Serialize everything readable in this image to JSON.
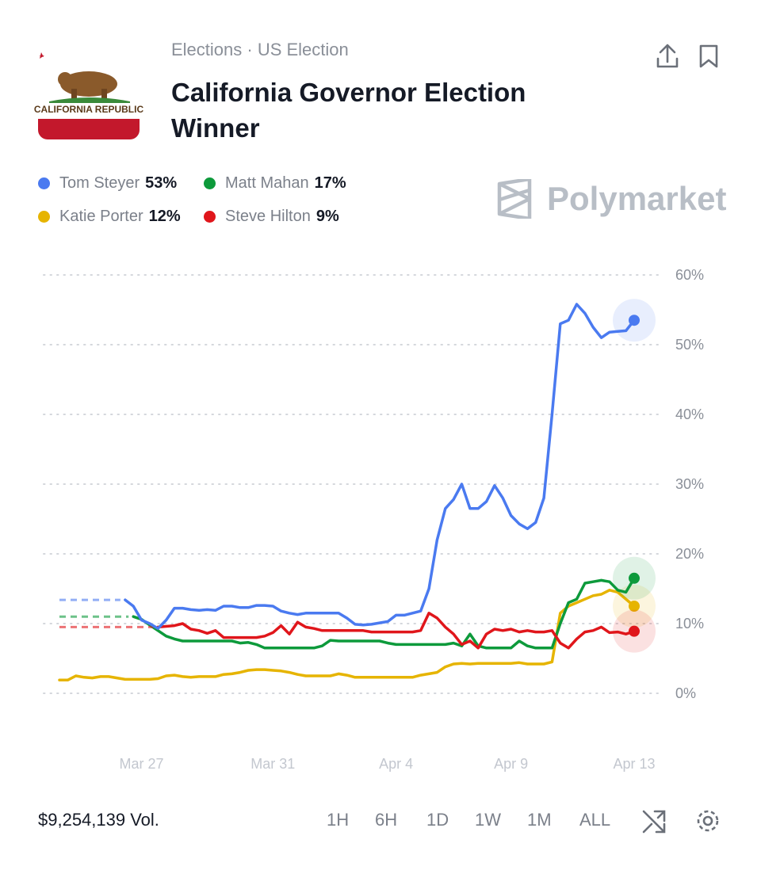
{
  "header": {
    "breadcrumb": "Elections · US Election",
    "title": "California Governor Election Winner",
    "flag_text": "CALIFORNIA REPUBLIC",
    "brand": "Polymarket"
  },
  "chart_data": {
    "type": "line",
    "categories": [
      null,
      null,
      null,
      null,
      null,
      null,
      null,
      null,
      null,
      null,
      "Mar 27",
      null,
      null,
      null,
      null,
      null,
      null,
      null,
      null,
      null,
      null,
      null,
      null,
      null,
      null,
      null,
      "Mar 31",
      null,
      null,
      null,
      null,
      null,
      null,
      null,
      null,
      null,
      null,
      null,
      null,
      null,
      null,
      "Apr 4",
      null,
      null,
      null,
      null,
      null,
      null,
      null,
      null,
      null,
      null,
      null,
      null,
      null,
      "Apr 9",
      null,
      null,
      null,
      null,
      null,
      null,
      null,
      null,
      null,
      null,
      null,
      null,
      null,
      null,
      "Apr 13"
    ],
    "series": [
      {
        "name": "Tom Steyer",
        "label": "53%",
        "color": "#4a7af0",
        "values": [
          null,
          null,
          null,
          null,
          null,
          null,
          null,
          null,
          13.4,
          12.5,
          10.5,
          10,
          9.3,
          10.5,
          12.2,
          12.2,
          12.0,
          11.9,
          12.0,
          11.9,
          12.5,
          12.5,
          12.3,
          12.3,
          12.6,
          12.6,
          12.5,
          11.8,
          11.5,
          11.3,
          11.5,
          11.5,
          11.5,
          11.5,
          11.5,
          10.8,
          9.9,
          9.8,
          9.9,
          10.1,
          10.3,
          11.2,
          11.2,
          11.5,
          11.8,
          15,
          22,
          26.5,
          27.8,
          30,
          26.5,
          26.5,
          27.5,
          29.8,
          28,
          25.5,
          24.3,
          23.6,
          24.5,
          28,
          40,
          53,
          53.5,
          55.8,
          54.5,
          52.5,
          51,
          51.8,
          51.9,
          52,
          53.5
        ]
      },
      {
        "name": "Matt Mahan",
        "label": "17%",
        "color": "#0d9a3b",
        "values": [
          null,
          null,
          null,
          null,
          null,
          null,
          null,
          null,
          null,
          11.0,
          10.6,
          9.8,
          9.0,
          8.2,
          7.8,
          7.5,
          7.5,
          7.5,
          7.5,
          7.5,
          7.5,
          7.5,
          7.2,
          7.3,
          7.0,
          6.5,
          6.5,
          6.5,
          6.5,
          6.5,
          6.5,
          6.5,
          6.8,
          7.6,
          7.5,
          7.5,
          7.5,
          7.5,
          7.5,
          7.5,
          7.2,
          7.0,
          7.0,
          7.0,
          7.0,
          7.0,
          7.0,
          7.0,
          7.2,
          6.8,
          8.5,
          6.8,
          6.5,
          6.5,
          6.5,
          6.5,
          7.5,
          6.8,
          6.5,
          6.5,
          6.5,
          10,
          13,
          13.5,
          15.8,
          16,
          16.2,
          16,
          14.8,
          14.5,
          16.5
        ]
      },
      {
        "name": "Katie Porter",
        "label": "12%",
        "color": "#e6b400",
        "values": [
          1.9,
          1.9,
          2.5,
          2.3,
          2.2,
          2.4,
          2.4,
          2.2,
          2.0,
          2.0,
          2.0,
          2.0,
          2.1,
          2.5,
          2.6,
          2.4,
          2.3,
          2.4,
          2.4,
          2.4,
          2.7,
          2.8,
          3.0,
          3.3,
          3.4,
          3.4,
          3.3,
          3.2,
          3.0,
          2.7,
          2.5,
          2.5,
          2.5,
          2.5,
          2.8,
          2.6,
          2.3,
          2.3,
          2.3,
          2.3,
          2.3,
          2.3,
          2.3,
          2.3,
          2.6,
          2.8,
          3.0,
          3.8,
          4.2,
          4.3,
          4.2,
          4.3,
          4.3,
          4.3,
          4.3,
          4.3,
          4.4,
          4.2,
          4.2,
          4.2,
          4.5,
          11.5,
          12.5,
          13,
          13.5,
          14,
          14.2,
          14.8,
          14.5,
          13.5,
          12.5
        ]
      },
      {
        "name": "Steve Hilton",
        "label": "9%",
        "color": "#e0161b",
        "values": [
          null,
          null,
          null,
          null,
          null,
          null,
          null,
          null,
          null,
          null,
          null,
          null,
          9.5,
          9.6,
          9.7,
          10,
          9.2,
          9.0,
          8.6,
          9.0,
          8.0,
          8.0,
          8.0,
          8.0,
          8.0,
          8.2,
          8.7,
          9.7,
          8.5,
          10.2,
          9.5,
          9.3,
          9.0,
          9.0,
          9.0,
          9.0,
          9.0,
          9.0,
          8.8,
          8.8,
          8.8,
          8.8,
          8.8,
          8.8,
          9.0,
          11.5,
          10.8,
          9.5,
          8.5,
          7,
          7.5,
          6.5,
          8.5,
          9.2,
          9.0,
          9.2,
          8.8,
          9.0,
          8.8,
          8.8,
          9.0,
          7.2,
          6.5,
          7.8,
          8.8,
          9.0,
          9.5,
          8.7,
          8.8,
          8.5,
          8.9
        ]
      }
    ],
    "ylim": [
      0,
      60
    ],
    "yticks": [
      {
        "value": 0,
        "label": "0%"
      },
      {
        "value": 10,
        "label": "10%"
      },
      {
        "value": 20,
        "label": "20%"
      },
      {
        "value": 30,
        "label": "30%"
      },
      {
        "value": 40,
        "label": "40%"
      },
      {
        "value": 50,
        "label": "50%"
      },
      {
        "value": 60,
        "label": "60%"
      }
    ],
    "grid": true
  },
  "footer": {
    "volume": "$9,254,139 Vol.",
    "ranges": [
      "1H",
      "6H",
      "1D",
      "1W",
      "1M",
      "ALL"
    ]
  }
}
